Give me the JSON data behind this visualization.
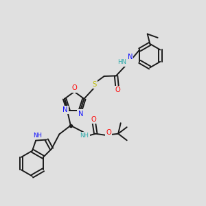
{
  "bg": "#e0e0e0",
  "C": "#1a1a1a",
  "N": "#1010ff",
  "O": "#ff0000",
  "S": "#bbbb00",
  "HN": "#2aaaaa",
  "lw": 1.4,
  "fs": 7.2,
  "fs_s": 6.2
}
